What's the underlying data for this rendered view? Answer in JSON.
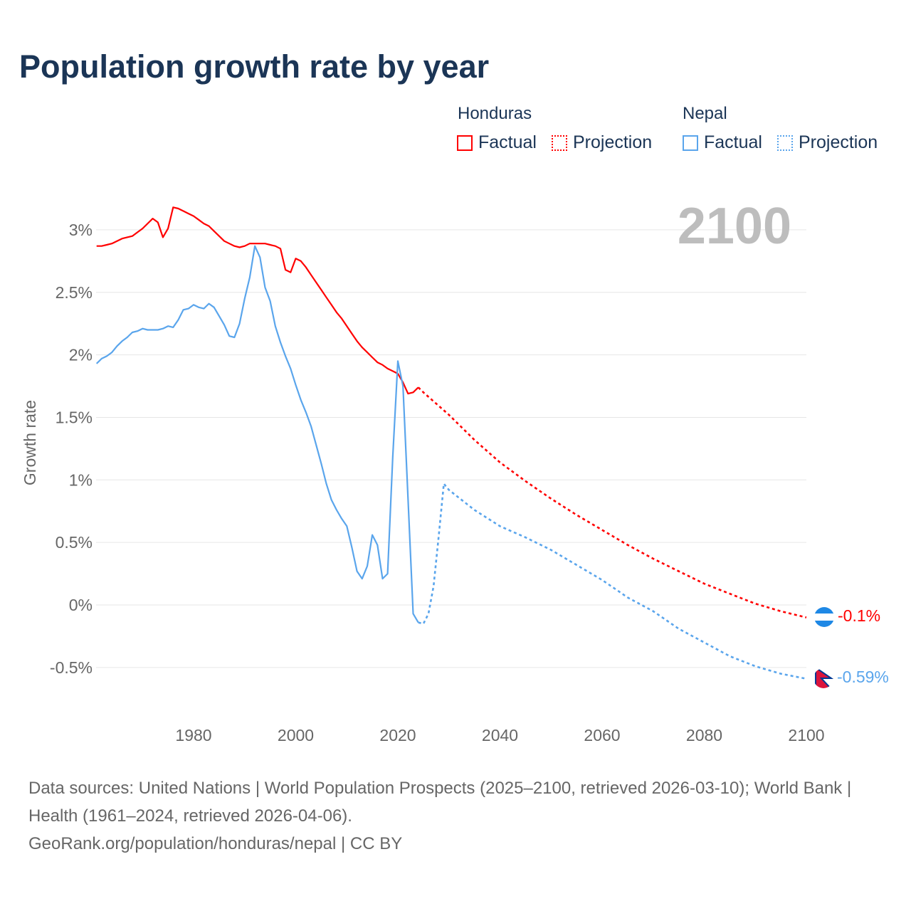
{
  "title": "Population growth rate by year",
  "legend": {
    "groups": [
      {
        "name": "Honduras",
        "factual": "Factual",
        "projection": "Projection",
        "color": "#ff0000"
      },
      {
        "name": "Nepal",
        "factual": "Factual",
        "projection": "Projection",
        "color": "#5aa5ec"
      }
    ]
  },
  "year_label": "2100",
  "end_labels": {
    "honduras": "-0.1%",
    "nepal": "-0.59%"
  },
  "source": {
    "line1": "Data sources: United Nations | World Population Prospects (2025–2100, retrieved 2026-03-10); World Bank | Health (1961–2024, retrieved 2026-04-06).",
    "line2": "GeoRank.org/population/honduras/nepal | CC BY"
  },
  "chart_data": {
    "type": "line",
    "title": "Population growth rate by year",
    "xlabel": "",
    "ylabel": "Growth rate",
    "xlim": [
      1961,
      2100
    ],
    "ylim": [
      -0.75,
      3.3
    ],
    "xticks": [
      1980,
      2000,
      2020,
      2040,
      2060,
      2080,
      2100
    ],
    "xtick_labels": [
      "1980",
      "2000",
      "2020",
      "2040",
      "2060",
      "2080",
      "2100"
    ],
    "yticks": [
      3,
      2.5,
      2,
      1.5,
      1,
      0.5,
      0,
      -0.5
    ],
    "ytick_labels": [
      "3%",
      "2.5%",
      "2%",
      "1.5%",
      "1%",
      "0.5%",
      "0%",
      "-0.5%"
    ],
    "grid": true,
    "legend_position": "top-right",
    "series": [
      {
        "name": "Honduras Factual",
        "color": "#ff0000",
        "style": "solid",
        "x": [
          1961,
          1962,
          1963,
          1964,
          1965,
          1966,
          1967,
          1968,
          1969,
          1970,
          1971,
          1972,
          1973,
          1974,
          1975,
          1976,
          1977,
          1978,
          1979,
          1980,
          1981,
          1982,
          1983,
          1984,
          1985,
          1986,
          1987,
          1988,
          1989,
          1990,
          1991,
          1992,
          1993,
          1994,
          1995,
          1996,
          1997,
          1998,
          1999,
          2000,
          2001,
          2002,
          2003,
          2004,
          2005,
          2006,
          2007,
          2008,
          2009,
          2010,
          2011,
          2012,
          2013,
          2014,
          2015,
          2016,
          2017,
          2018,
          2019,
          2020,
          2021,
          2022,
          2023,
          2024
        ],
        "values": [
          2.87,
          2.87,
          2.88,
          2.89,
          2.91,
          2.93,
          2.94,
          2.95,
          2.98,
          3.01,
          3.05,
          3.09,
          3.06,
          2.94,
          3.01,
          3.18,
          3.17,
          3.15,
          3.13,
          3.11,
          3.08,
          3.05,
          3.03,
          2.99,
          2.95,
          2.91,
          2.89,
          2.87,
          2.86,
          2.87,
          2.89,
          2.89,
          2.89,
          2.89,
          2.88,
          2.87,
          2.85,
          2.68,
          2.66,
          2.77,
          2.75,
          2.7,
          2.64,
          2.58,
          2.52,
          2.46,
          2.4,
          2.34,
          2.29,
          2.23,
          2.17,
          2.11,
          2.06,
          2.02,
          1.98,
          1.94,
          1.92,
          1.89,
          1.87,
          1.85,
          1.78,
          1.69,
          1.7,
          1.74
        ]
      },
      {
        "name": "Honduras Projection",
        "color": "#ff0000",
        "style": "dotted",
        "x": [
          2024,
          2025,
          2030,
          2035,
          2040,
          2045,
          2050,
          2055,
          2060,
          2065,
          2070,
          2075,
          2080,
          2085,
          2090,
          2095,
          2100
        ],
        "values": [
          1.74,
          1.7,
          1.52,
          1.32,
          1.14,
          0.99,
          0.85,
          0.72,
          0.6,
          0.48,
          0.37,
          0.27,
          0.17,
          0.09,
          0.01,
          -0.05,
          -0.1
        ]
      },
      {
        "name": "Nepal Factual",
        "color": "#5aa5ec",
        "style": "solid",
        "x": [
          1961,
          1962,
          1963,
          1964,
          1965,
          1966,
          1967,
          1968,
          1969,
          1970,
          1971,
          1972,
          1973,
          1974,
          1975,
          1976,
          1977,
          1978,
          1979,
          1980,
          1981,
          1982,
          1983,
          1984,
          1985,
          1986,
          1987,
          1988,
          1989,
          1990,
          1991,
          1992,
          1993,
          1994,
          1995,
          1996,
          1997,
          1998,
          1999,
          2000,
          2001,
          2002,
          2003,
          2004,
          2005,
          2006,
          2007,
          2008,
          2009,
          2010,
          2011,
          2012,
          2013,
          2014,
          2015,
          2016,
          2017,
          2018,
          2019,
          2020,
          2021,
          2022,
          2023,
          2024
        ],
        "values": [
          1.93,
          1.97,
          1.99,
          2.02,
          2.07,
          2.11,
          2.14,
          2.18,
          2.19,
          2.21,
          2.2,
          2.2,
          2.2,
          2.21,
          2.23,
          2.22,
          2.28,
          2.36,
          2.37,
          2.4,
          2.38,
          2.37,
          2.41,
          2.38,
          2.31,
          2.24,
          2.15,
          2.14,
          2.25,
          2.45,
          2.62,
          2.87,
          2.78,
          2.54,
          2.43,
          2.23,
          2.1,
          1.99,
          1.89,
          1.76,
          1.64,
          1.54,
          1.43,
          1.28,
          1.13,
          0.97,
          0.84,
          0.76,
          0.69,
          0.63,
          0.46,
          0.27,
          0.21,
          0.31,
          0.56,
          0.48,
          0.21,
          0.25,
          1.18,
          1.95,
          1.75,
          0.85,
          -0.07,
          -0.14
        ]
      },
      {
        "name": "Nepal Projection",
        "color": "#5aa5ec",
        "style": "dotted",
        "x": [
          2024,
          2025,
          2026,
          2027,
          2028,
          2029,
          2030,
          2035,
          2040,
          2045,
          2050,
          2055,
          2060,
          2065,
          2070,
          2075,
          2080,
          2085,
          2090,
          2095,
          2100
        ],
        "values": [
          -0.14,
          -0.15,
          -0.07,
          0.15,
          0.55,
          0.97,
          0.92,
          0.76,
          0.63,
          0.54,
          0.44,
          0.32,
          0.2,
          0.06,
          -0.05,
          -0.19,
          -0.3,
          -0.41,
          -0.49,
          -0.55,
          -0.59
        ]
      }
    ]
  }
}
